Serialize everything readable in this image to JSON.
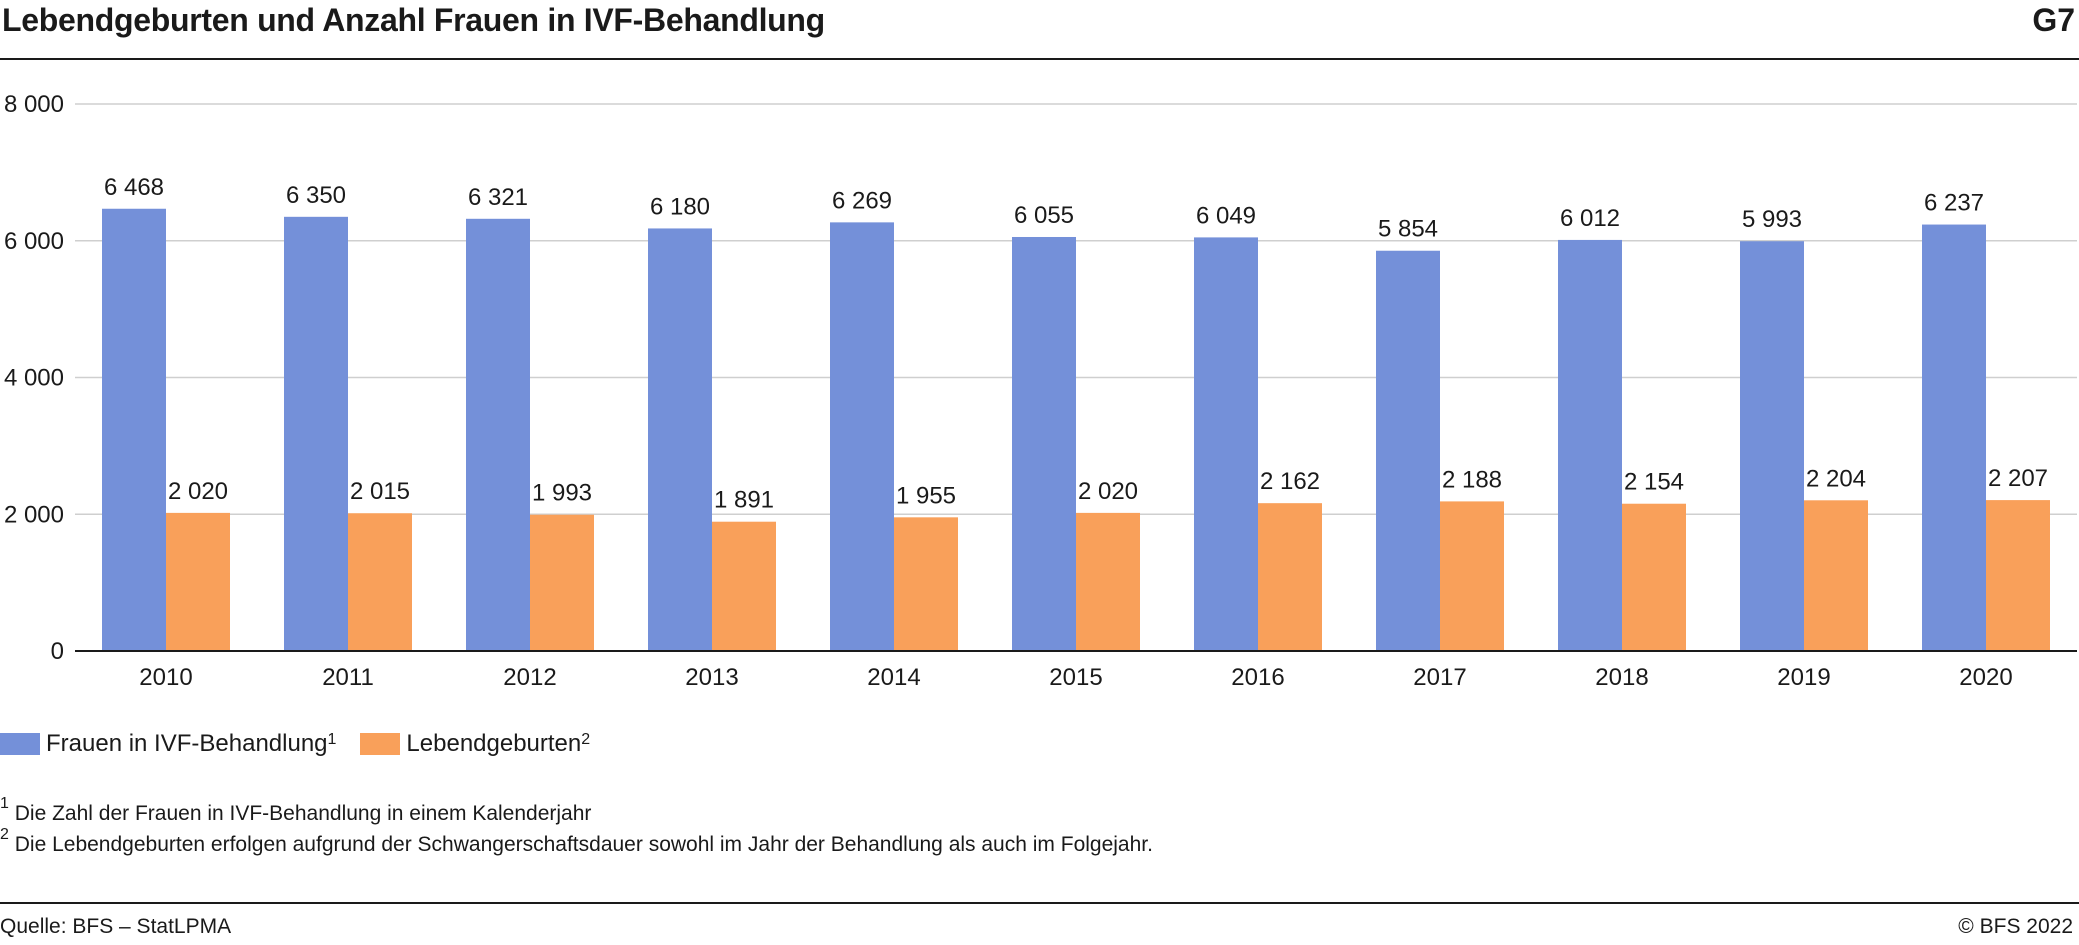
{
  "header": {
    "title": "Lebendgeburten und Anzahl Frauen in IVF-Behandlung",
    "code": "G7"
  },
  "legend": {
    "items": [
      {
        "label": "Frauen in IVF-Behandlung",
        "sup": "1",
        "color": "#7490d9"
      },
      {
        "label": "Lebendgeburten",
        "sup": "2",
        "color": "#f9a05a"
      }
    ]
  },
  "footnotes": [
    {
      "num": "1",
      "text": "Die Zahl der Frauen in IVF-Behandlung in einem Kalenderjahr"
    },
    {
      "num": "2",
      "text": "Die Lebendgeburten erfolgen aufgrund der Schwangerschaftsdauer sowohl im Jahr der Behandlung als auch im Folgejahr."
    }
  ],
  "footer": {
    "source": "Quelle: BFS – StatLPMA",
    "copyright": "© BFS 2022"
  },
  "chart_data": {
    "type": "bar",
    "categories": [
      "2010",
      "2011",
      "2012",
      "2013",
      "2014",
      "2015",
      "2016",
      "2017",
      "2018",
      "2019",
      "2020"
    ],
    "series": [
      {
        "name": "Frauen in IVF-Behandlung",
        "color": "#7490d9",
        "values": [
          6468,
          6350,
          6321,
          6180,
          6269,
          6055,
          6049,
          5854,
          6012,
          5993,
          6237
        ],
        "labels": [
          "6 468",
          "6 350",
          "6 321",
          "6 180",
          "6 269",
          "6 055",
          "6 049",
          "5 854",
          "6 012",
          "5 993",
          "6 237"
        ]
      },
      {
        "name": "Lebendgeburten",
        "color": "#f9a05a",
        "values": [
          2020,
          2015,
          1993,
          1891,
          1955,
          2020,
          2162,
          2188,
          2154,
          2204,
          2207
        ],
        "labels": [
          "2 020",
          "2 015",
          "1 993",
          "1 891",
          "1 955",
          "2 020",
          "2 162",
          "2 188",
          "2 154",
          "2 204",
          "2 207"
        ]
      }
    ],
    "ylim": [
      0,
      8000
    ],
    "yticks": [
      0,
      2000,
      4000,
      6000,
      8000
    ],
    "ytick_labels": [
      "0",
      "2 000",
      "4 000",
      "6 000",
      "8 000"
    ],
    "grid": true,
    "legend_position": "bottom-left"
  }
}
